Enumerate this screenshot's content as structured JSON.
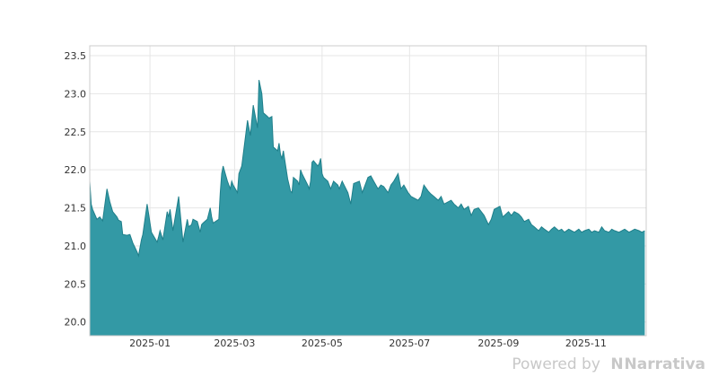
{
  "chart_data": {
    "type": "area",
    "title": "",
    "xlabel": "",
    "ylabel": "",
    "xlim": [
      "2024-11-20",
      "2025-12-13"
    ],
    "ylim": [
      19.82,
      23.63
    ],
    "yticks": [
      "20.0",
      "20.5",
      "21.0",
      "21.5",
      "22.0",
      "22.5",
      "23.0",
      "23.5"
    ],
    "xticks": [
      {
        "date": "2025-01-01",
        "label": "2025-01"
      },
      {
        "date": "2025-03-01",
        "label": "2025-03"
      },
      {
        "date": "2025-05-01",
        "label": "2025-05"
      },
      {
        "date": "2025-07-01",
        "label": "2025-07"
      },
      {
        "date": "2025-09-01",
        "label": "2025-09"
      },
      {
        "date": "2025-11-01",
        "label": "2025-11"
      }
    ],
    "grid": true,
    "legend": "none",
    "colors": {
      "fill": "#3399a5",
      "line": "#1f7f8a",
      "frame": "#cccccc",
      "grid": "#e6e6e6"
    },
    "series": [
      {
        "x": [
          "2024-11-20",
          "2024-11-21",
          "2024-11-22",
          "2024-11-25",
          "2024-11-27",
          "2024-11-29",
          "2024-12-02",
          "2024-12-04",
          "2024-12-06",
          "2024-12-09",
          "2024-12-10",
          "2024-12-12",
          "2024-12-13",
          "2024-12-16",
          "2024-12-18",
          "2024-12-20",
          "2024-12-23",
          "2024-12-24",
          "2024-12-26",
          "2024-12-27",
          "2024-12-30",
          "2025-01-02",
          "2025-01-06",
          "2025-01-07",
          "2025-01-08",
          "2025-01-10",
          "2025-01-13",
          "2025-01-14",
          "2025-01-15",
          "2025-01-17",
          "2025-01-21",
          "2025-01-24",
          "2025-01-27",
          "2025-01-28",
          "2025-01-30",
          "2025-01-31",
          "2025-02-03",
          "2025-02-05",
          "2025-02-06",
          "2025-02-07",
          "2025-02-10",
          "2025-02-12",
          "2025-02-13",
          "2025-02-14",
          "2025-02-18",
          "2025-02-19",
          "2025-02-20",
          "2025-02-21",
          "2025-02-24",
          "2025-02-26",
          "2025-02-27",
          "2025-02-28",
          "2025-03-03",
          "2025-03-04",
          "2025-03-06",
          "2025-03-07",
          "2025-03-10",
          "2025-03-12",
          "2025-03-14",
          "2025-03-17",
          "2025-03-18",
          "2025-03-20",
          "2025-03-21",
          "2025-03-24",
          "2025-03-25",
          "2025-03-27",
          "2025-03-28",
          "2025-03-31",
          "2025-04-01",
          "2025-04-02",
          "2025-04-03",
          "2025-04-04",
          "2025-04-07",
          "2025-04-08",
          "2025-04-09",
          "2025-04-10",
          "2025-04-11",
          "2025-04-14",
          "2025-04-15",
          "2025-04-16",
          "2025-04-17",
          "2025-04-21",
          "2025-04-22",
          "2025-04-23",
          "2025-04-24",
          "2025-04-25",
          "2025-04-28",
          "2025-04-29",
          "2025-04-30",
          "2025-05-01",
          "2025-05-02",
          "2025-05-05",
          "2025-05-06",
          "2025-05-07",
          "2025-05-08",
          "2025-05-09",
          "2025-05-12",
          "2025-05-13",
          "2025-05-15",
          "2025-05-19",
          "2025-05-21",
          "2025-05-23",
          "2025-05-27",
          "2025-05-29",
          "2025-06-02",
          "2025-06-04",
          "2025-06-06",
          "2025-06-09",
          "2025-06-11",
          "2025-06-13",
          "2025-06-16",
          "2025-06-18",
          "2025-06-20",
          "2025-06-23",
          "2025-06-25",
          "2025-06-27",
          "2025-06-30",
          "2025-07-02",
          "2025-07-07",
          "2025-07-09",
          "2025-07-11",
          "2025-07-14",
          "2025-07-16",
          "2025-07-18",
          "2025-07-21",
          "2025-07-23",
          "2025-07-25",
          "2025-07-28",
          "2025-07-30",
          "2025-08-01",
          "2025-08-04",
          "2025-08-06",
          "2025-08-08",
          "2025-08-11",
          "2025-08-13",
          "2025-08-15",
          "2025-08-18",
          "2025-08-20",
          "2025-08-22",
          "2025-08-25",
          "2025-08-27",
          "2025-08-29",
          "2025-09-02",
          "2025-09-04",
          "2025-09-08",
          "2025-09-10",
          "2025-09-12",
          "2025-09-15",
          "2025-09-17",
          "2025-09-19",
          "2025-09-22",
          "2025-09-24",
          "2025-09-26",
          "2025-09-29",
          "2025-10-01",
          "2025-10-03",
          "2025-10-06",
          "2025-10-08",
          "2025-10-10",
          "2025-10-13",
          "2025-10-15",
          "2025-10-17",
          "2025-10-20",
          "2025-10-22",
          "2025-10-24",
          "2025-10-27",
          "2025-10-29",
          "2025-10-31",
          "2025-11-03",
          "2025-11-05",
          "2025-11-07",
          "2025-11-10",
          "2025-11-12",
          "2025-11-14",
          "2025-11-17",
          "2025-11-19",
          "2025-11-21",
          "2025-11-24",
          "2025-11-26",
          "2025-11-28",
          "2025-12-01",
          "2025-12-03",
          "2025-12-05",
          "2025-12-08",
          "2025-12-10",
          "2025-12-12"
        ],
        "y": [
          21.85,
          21.55,
          21.48,
          21.35,
          21.38,
          21.33,
          21.75,
          21.58,
          21.45,
          21.38,
          21.34,
          21.32,
          21.15,
          21.14,
          21.15,
          21.04,
          20.92,
          20.87,
          21.08,
          21.15,
          21.55,
          21.18,
          21.05,
          21.12,
          21.2,
          21.08,
          21.45,
          21.38,
          21.48,
          21.2,
          21.65,
          21.05,
          21.35,
          21.25,
          21.28,
          21.35,
          21.32,
          21.18,
          21.28,
          21.3,
          21.35,
          21.5,
          21.38,
          21.3,
          21.35,
          21.7,
          21.95,
          22.05,
          21.85,
          21.75,
          21.85,
          21.8,
          21.7,
          21.95,
          22.05,
          22.2,
          22.65,
          22.45,
          22.85,
          22.55,
          23.18,
          23.0,
          22.75,
          22.7,
          22.68,
          22.7,
          22.3,
          22.25,
          22.35,
          22.2,
          22.15,
          22.25,
          21.88,
          21.8,
          21.72,
          21.7,
          21.9,
          21.85,
          21.8,
          22.0,
          21.95,
          21.8,
          21.75,
          21.85,
          22.1,
          22.12,
          22.05,
          22.08,
          22.15,
          21.95,
          21.9,
          21.85,
          21.8,
          21.75,
          21.8,
          21.85,
          21.8,
          21.75,
          21.85,
          21.7,
          21.55,
          21.82,
          21.85,
          21.7,
          21.9,
          21.92,
          21.85,
          21.75,
          21.8,
          21.78,
          21.7,
          21.8,
          21.85,
          21.95,
          21.75,
          21.8,
          21.7,
          21.65,
          21.6,
          21.65,
          21.8,
          21.72,
          21.68,
          21.65,
          21.6,
          21.65,
          21.55,
          21.58,
          21.6,
          21.55,
          21.5,
          21.55,
          21.48,
          21.52,
          21.4,
          21.48,
          21.5,
          21.45,
          21.4,
          21.28,
          21.35,
          21.48,
          21.52,
          21.38,
          21.45,
          21.4,
          21.45,
          21.42,
          21.38,
          21.32,
          21.35,
          21.28,
          21.25,
          21.2,
          21.25,
          21.22,
          21.18,
          21.22,
          21.25,
          21.2,
          21.22,
          21.18,
          21.22,
          21.2,
          21.18,
          21.22,
          21.18,
          21.2,
          21.22,
          21.18,
          21.2,
          21.18,
          21.25,
          21.2,
          21.18,
          21.22,
          21.2,
          21.18,
          21.2,
          21.22,
          21.18,
          21.2,
          21.22,
          21.2,
          21.18,
          21.2
        ]
      }
    ]
  },
  "footer": {
    "powered_text": "Powered by",
    "brand_text": "Narrativa",
    "logo_icon": "narrativa-n-icon"
  }
}
